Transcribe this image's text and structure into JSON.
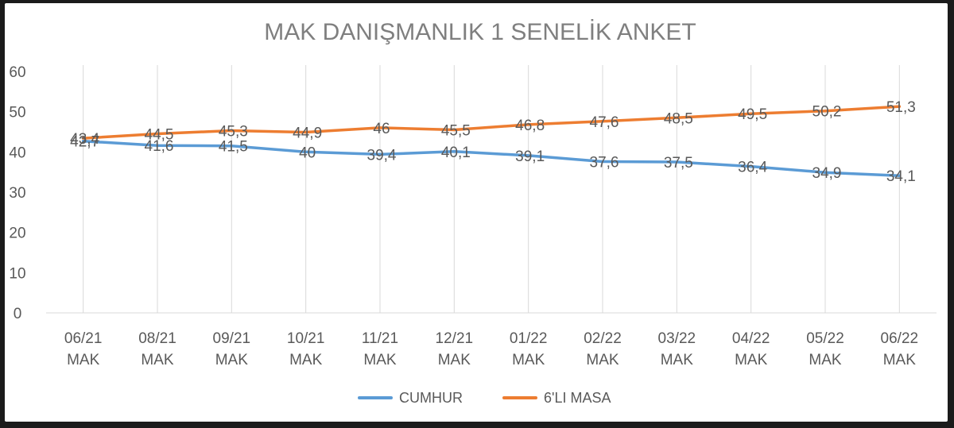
{
  "chart_data": {
    "type": "line",
    "title": "MAK DANIŞMANLIK 1 SENELİK ANKET",
    "xlabel": "",
    "ylabel": "",
    "ylim": [
      0,
      60
    ],
    "yticks": [
      "0",
      "10",
      "20",
      "30",
      "40",
      "50",
      "60"
    ],
    "categories": [
      [
        "06/21",
        "MAK"
      ],
      [
        "08/21",
        "MAK"
      ],
      [
        "09/21",
        "MAK"
      ],
      [
        "10/21",
        "MAK"
      ],
      [
        "11/21",
        "MAK"
      ],
      [
        "12/21",
        "MAK"
      ],
      [
        "01/22",
        "MAK"
      ],
      [
        "02/22",
        "MAK"
      ],
      [
        "03/22",
        "MAK"
      ],
      [
        "04/22",
        "MAK"
      ],
      [
        "05/22",
        "MAK"
      ],
      [
        "06/22",
        "MAK"
      ]
    ],
    "series": [
      {
        "name": "CUMHUR",
        "color": "#5b9bd5",
        "values": [
          42.7,
          41.6,
          41.5,
          40,
          39.4,
          40.1,
          39.1,
          37.6,
          37.5,
          36.4,
          34.9,
          34.1
        ],
        "labels": [
          "42,7",
          "41,6",
          "41,5",
          "40",
          "39,4",
          "40,1",
          "39,1",
          "37,6",
          "37,5",
          "36,4",
          "34,9",
          "34,1"
        ]
      },
      {
        "name": "6'LI MASA",
        "color": "#ed7d31",
        "values": [
          43.4,
          44.5,
          45.3,
          44.9,
          46,
          45.5,
          46.8,
          47.6,
          48.5,
          49.5,
          50.2,
          51.3
        ],
        "labels": [
          "43,4",
          "44,5",
          "45,3",
          "44,9",
          "46",
          "45,5",
          "46,8",
          "47,6",
          "48,5",
          "49,5",
          "50,2",
          "51,3"
        ]
      }
    ],
    "grid": "vertical",
    "legend": "bottom"
  }
}
